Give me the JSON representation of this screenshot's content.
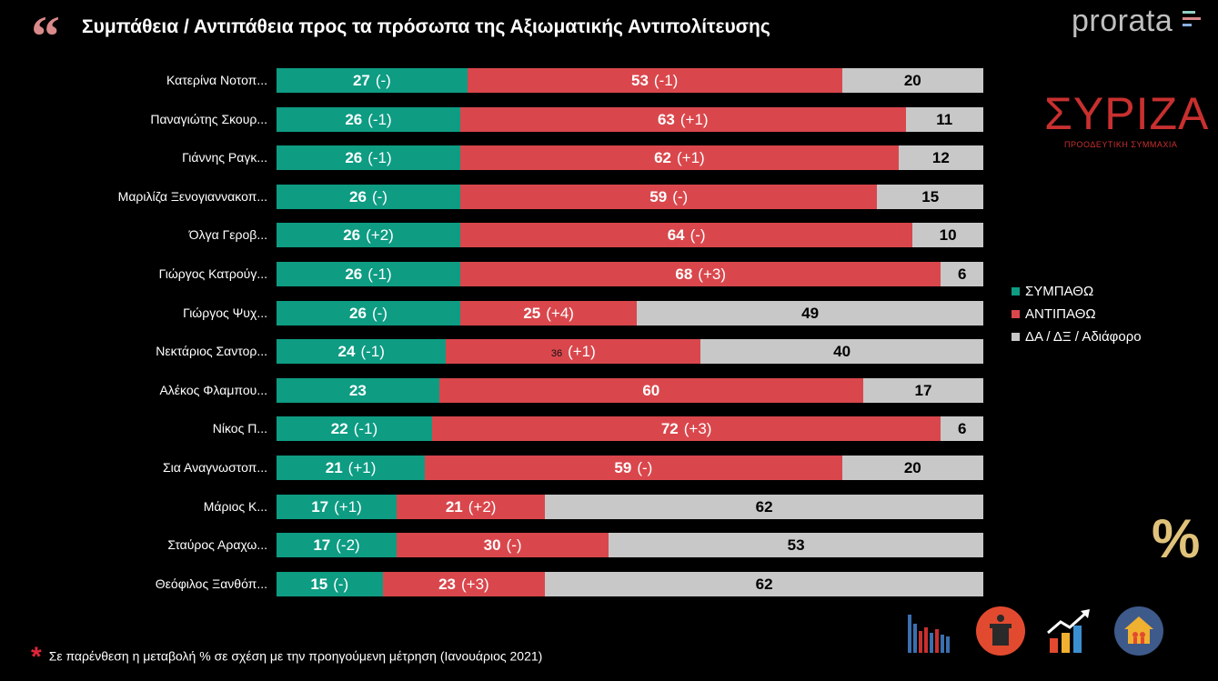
{
  "header": {
    "title": "Συμπάθεια / Αντιπάθεια προς τα πρόσωπα της Αξιωματικής Αντιπολίτευσης",
    "brand": "prorata"
  },
  "party_logo": {
    "name": "ΣΥΡΙΖΑ",
    "subtitle": "ΠΡΟΟΔΕΥΤΙΚΗ ΣΥΜΜΑΧΙΑ"
  },
  "footnote": "Σε παρένθεση η μεταβολή % σε σχέση με την προηγούμενη μέτρηση (Ιανουάριος 2021)",
  "footnote_symbol": "*",
  "percent_symbol": "%",
  "colors": {
    "sympatho": "#0e9c83",
    "antipatho": "#d9474c",
    "other": "#c8c8c8"
  },
  "chart_data": {
    "type": "bar",
    "orientation": "horizontal",
    "stacked": true,
    "categories": [
      "Κατερίνα Νοτοπ...",
      "Παναγιώτης Σκουρ...",
      "Γιάννης Ραγκ...",
      "Μαριλίζα Ξενογιαννακοπ...",
      "Όλγα Γεροβ...",
      "Γιώργος Κατρούγ...",
      "Γιώργος Ψυχ...",
      "Νεκτάριος Σαντορ...",
      "Αλέκος Φλαμπου...",
      "Νίκος Π...",
      "Σια Αναγνωστοπ...",
      "Μάριος Κ...",
      "Σταύρος Αραχω...",
      "Θεόφιλος Ξανθόπ..."
    ],
    "series": [
      {
        "name": "ΣΥΜΠΑΘΩ",
        "values": [
          27,
          26,
          26,
          26,
          26,
          26,
          26,
          24,
          23,
          22,
          21,
          17,
          17,
          15
        ],
        "changes": [
          "(-)",
          "(-1)",
          "(-1)",
          "(-)",
          "(+2)",
          "(-1)",
          "(-)",
          "(-1)",
          "",
          "(-1)",
          "(+1)",
          "(+1)",
          "(-2)",
          "(-)"
        ]
      },
      {
        "name": "ΑΝΤΙΠΑΘΩ",
        "values": [
          53,
          63,
          62,
          59,
          64,
          68,
          25,
          36,
          60,
          72,
          59,
          21,
          30,
          23
        ],
        "changes": [
          "(-1)",
          "(+1)",
          "(+1)",
          "(-)",
          "(-)",
          "(+3)",
          "(+4)",
          "(+1)",
          "",
          "(+3)",
          "(-)",
          "(+2)",
          "(-)",
          "(+3)"
        ]
      },
      {
        "name": "ΔΑ / ΔΞ / Αδιάφορο",
        "values": [
          20,
          11,
          12,
          15,
          10,
          6,
          49,
          40,
          17,
          6,
          20,
          62,
          53,
          62
        ],
        "changes": [
          "",
          "",
          "",
          "",
          "",
          "",
          "",
          "",
          "",
          "",
          "",
          "",
          "",
          ""
        ]
      }
    ],
    "xlim": [
      0,
      100
    ],
    "legend": "right",
    "grid": false
  }
}
